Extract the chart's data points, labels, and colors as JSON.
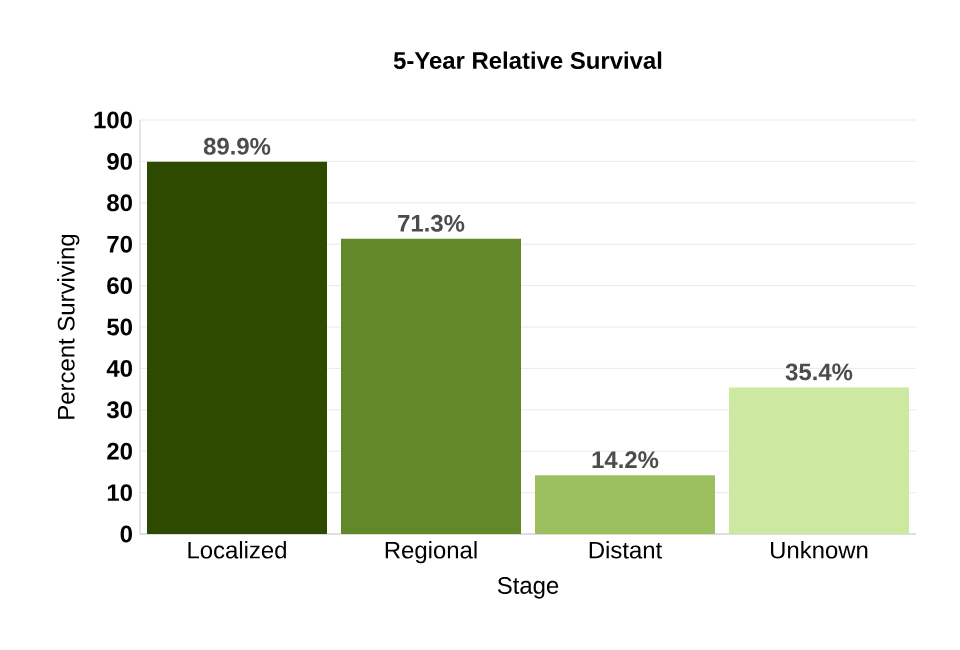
{
  "chart_data": {
    "type": "bar",
    "title": "5-Year Relative Survival",
    "xlabel": "Stage",
    "ylabel": "Percent Surviving",
    "categories": [
      "Localized",
      "Regional",
      "Distant",
      "Unknown"
    ],
    "values": [
      89.9,
      71.3,
      14.2,
      35.4
    ],
    "colors": [
      "#2e4a00",
      "#62882a",
      "#9cc060",
      "#cde8a0"
    ],
    "value_labels": [
      "89.9%",
      "71.3%",
      "14.2%",
      "35.4%"
    ],
    "ylim": [
      0,
      100
    ],
    "yticks": [
      0,
      10,
      20,
      30,
      40,
      50,
      60,
      70,
      80,
      90,
      100
    ],
    "grid": "y"
  }
}
